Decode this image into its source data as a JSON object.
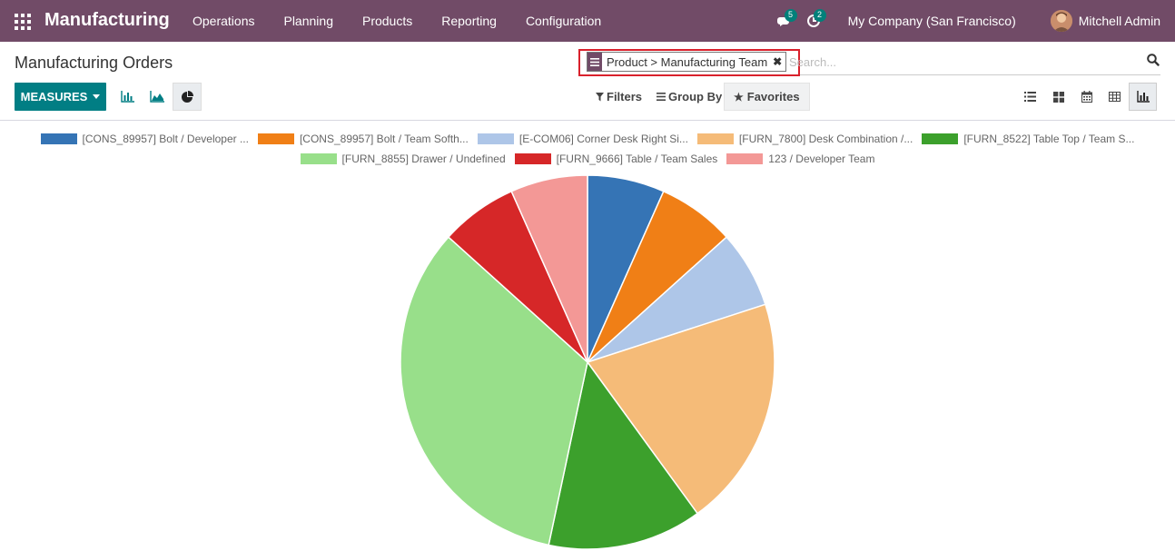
{
  "navbar": {
    "brand": "Manufacturing",
    "menu": [
      "Operations",
      "Planning",
      "Products",
      "Reporting",
      "Configuration"
    ],
    "messages_count": "5",
    "activities_count": "2",
    "company": "My Company (San Francisco)",
    "user": "Mitchell Admin"
  },
  "control_panel": {
    "title": "Manufacturing Orders",
    "facet": "Product > Manufacturing Team",
    "search_placeholder": "Search...",
    "measures_label": "MEASURES",
    "filters_label": "Filters",
    "group_by_label": "Group By",
    "favorites_label": "Favorites",
    "active_chart_type": "pie",
    "active_view": "graph"
  },
  "chart_data": {
    "type": "pie",
    "legend_rows": [
      [
        0,
        1,
        2,
        3,
        4
      ],
      [
        5,
        6,
        7
      ]
    ],
    "slices": [
      {
        "label": "[CONS_89957] Bolt / Developer ...",
        "value": 1,
        "color": "#3574b5"
      },
      {
        "label": "[CONS_89957] Bolt / Team Softh...",
        "value": 1,
        "color": "#f07f16"
      },
      {
        "label": "[E-COM06] Corner Desk Right Si...",
        "value": 1,
        "color": "#aec6e8"
      },
      {
        "label": "[FURN_7800] Desk Combination /...",
        "value": 3,
        "color": "#f5bb78"
      },
      {
        "label": "[FURN_8522] Table Top / Team S...",
        "value": 2,
        "color": "#3ca02c"
      },
      {
        "label": "[FURN_8855] Drawer / Undefined",
        "value": 5,
        "color": "#98df8a"
      },
      {
        "label": "[FURN_9666] Table / Team Sales",
        "value": 1,
        "color": "#d62728"
      },
      {
        "label": "123 / Developer Team",
        "value": 1,
        "color": "#f39896"
      }
    ]
  }
}
